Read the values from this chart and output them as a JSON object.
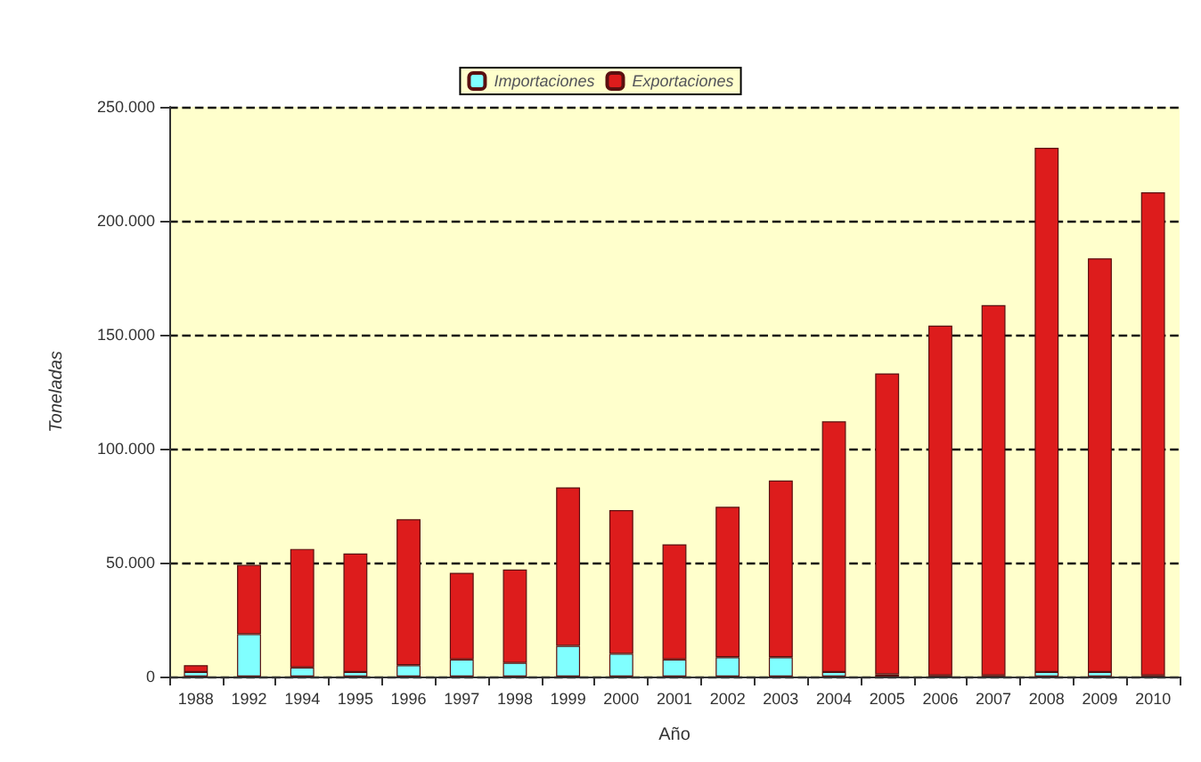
{
  "chart_data": {
    "type": "bar",
    "stacked": true,
    "xlabel": "Año",
    "ylabel": "Toneladas",
    "categories": [
      "1988",
      "1992",
      "1994",
      "1995",
      "1996",
      "1997",
      "1998",
      "1999",
      "2000",
      "2001",
      "2002",
      "2003",
      "2004",
      "2005",
      "2006",
      "2007",
      "2008",
      "2009",
      "2010"
    ],
    "series": [
      {
        "name": "Importaciones",
        "color": "#80ffff",
        "values": [
          2000,
          18600,
          4000,
          2000,
          5000,
          7500,
          6000,
          13500,
          10000,
          7500,
          8500,
          8500,
          2000,
          1000,
          500,
          500,
          2000,
          2000,
          500
        ]
      },
      {
        "name": "Exportaciones",
        "color": "#dd1c1c",
        "values": [
          3000,
          30400,
          52000,
          52000,
          64000,
          38000,
          41000,
          69500,
          63000,
          50500,
          66000,
          77500,
          110000,
          132000,
          153500,
          162500,
          230000,
          181500,
          212000
        ]
      }
    ],
    "ylim": [
      0,
      250000
    ],
    "yticks": [
      {
        "value": 0,
        "label": "0"
      },
      {
        "value": 50000,
        "label": "50.000"
      },
      {
        "value": 100000,
        "label": "100.000"
      },
      {
        "value": 150000,
        "label": "150.000"
      },
      {
        "value": 200000,
        "label": "200.000"
      },
      {
        "value": 250000,
        "label": "250.000"
      }
    ],
    "grid": "y",
    "line_style": "dashed",
    "legend": "top"
  }
}
